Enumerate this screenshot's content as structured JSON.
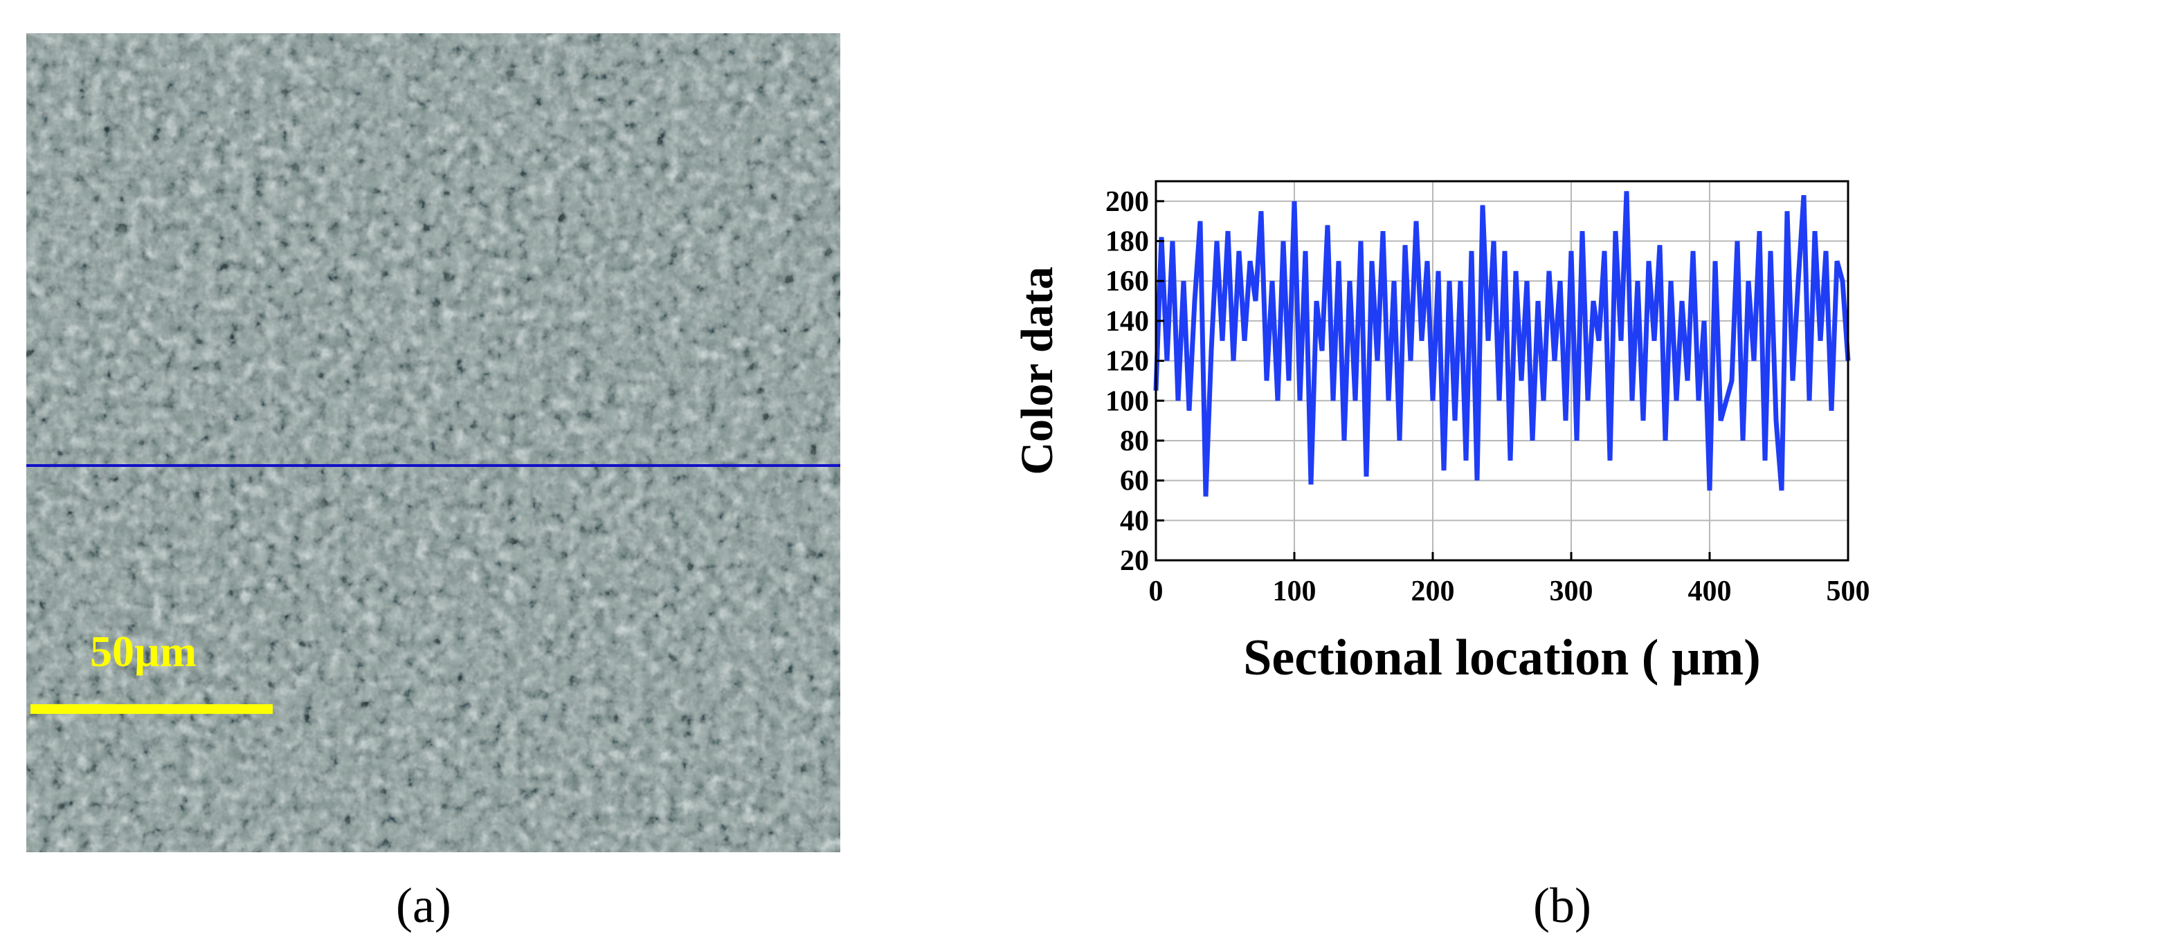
{
  "panels": {
    "a": {
      "label": "(a)",
      "scale_bar_label": "50µm"
    },
    "b": {
      "label": "(b)"
    }
  },
  "colors": {
    "line": "#1f3df5",
    "scan_line": "#1010c8",
    "scale_bar": "#ffff00",
    "grid": "#b8b8b8"
  },
  "chart_data": {
    "type": "line",
    "title": "",
    "xlabel": "Sectional location ( µm)",
    "ylabel": "Color data",
    "xlim": [
      0,
      500
    ],
    "ylim": [
      20,
      210
    ],
    "xticks": [
      0,
      100,
      200,
      300,
      400,
      500
    ],
    "yticks": [
      20,
      40,
      60,
      80,
      100,
      120,
      140,
      160,
      180,
      200
    ],
    "grid": true,
    "legend": "none",
    "series": [
      {
        "x": [
          0,
          4,
          8,
          12,
          16,
          20,
          24,
          28,
          32,
          36,
          40,
          44,
          48,
          52,
          56,
          60,
          64,
          68,
          72,
          76,
          80,
          84,
          88,
          92,
          96,
          100,
          104,
          108,
          112,
          116,
          120,
          124,
          128,
          132,
          136,
          140,
          144,
          148,
          152,
          156,
          160,
          164,
          168,
          172,
          176,
          180,
          184,
          188,
          192,
          196,
          200,
          204,
          208,
          212,
          216,
          220,
          224,
          228,
          232,
          236,
          240,
          244,
          248,
          252,
          256,
          260,
          264,
          268,
          272,
          276,
          280,
          284,
          288,
          292,
          296,
          300,
          304,
          308,
          312,
          316,
          320,
          324,
          328,
          332,
          336,
          340,
          344,
          348,
          352,
          356,
          360,
          364,
          368,
          372,
          376,
          380,
          384,
          388,
          392,
          396,
          400,
          404,
          408,
          412,
          416,
          420,
          424,
          428,
          432,
          436,
          440,
          444,
          448,
          452,
          456,
          460,
          464,
          468,
          472,
          476,
          480,
          484,
          488,
          492,
          496,
          500
        ],
        "values": [
          105,
          182,
          120,
          180,
          100,
          160,
          95,
          150,
          190,
          52,
          125,
          180,
          130,
          185,
          120,
          175,
          130,
          170,
          150,
          195,
          110,
          160,
          100,
          180,
          110,
          200,
          100,
          175,
          58,
          150,
          125,
          188,
          100,
          170,
          80,
          160,
          100,
          180,
          62,
          170,
          120,
          185,
          100,
          160,
          80,
          178,
          120,
          190,
          130,
          170,
          100,
          165,
          65,
          160,
          90,
          160,
          70,
          175,
          60,
          198,
          130,
          180,
          100,
          175,
          70,
          165,
          110,
          160,
          80,
          150,
          100,
          165,
          120,
          160,
          90,
          175,
          80,
          185,
          100,
          150,
          130,
          175,
          70,
          185,
          130,
          205,
          100,
          160,
          90,
          170,
          130,
          178,
          80,
          160,
          100,
          150,
          110,
          175,
          100,
          140,
          55,
          170,
          90,
          100,
          110,
          180,
          80,
          160,
          120,
          185,
          70,
          175,
          90,
          55,
          195,
          110,
          160,
          203,
          100,
          185,
          130,
          175,
          95,
          170,
          160,
          120
        ]
      }
    ]
  }
}
